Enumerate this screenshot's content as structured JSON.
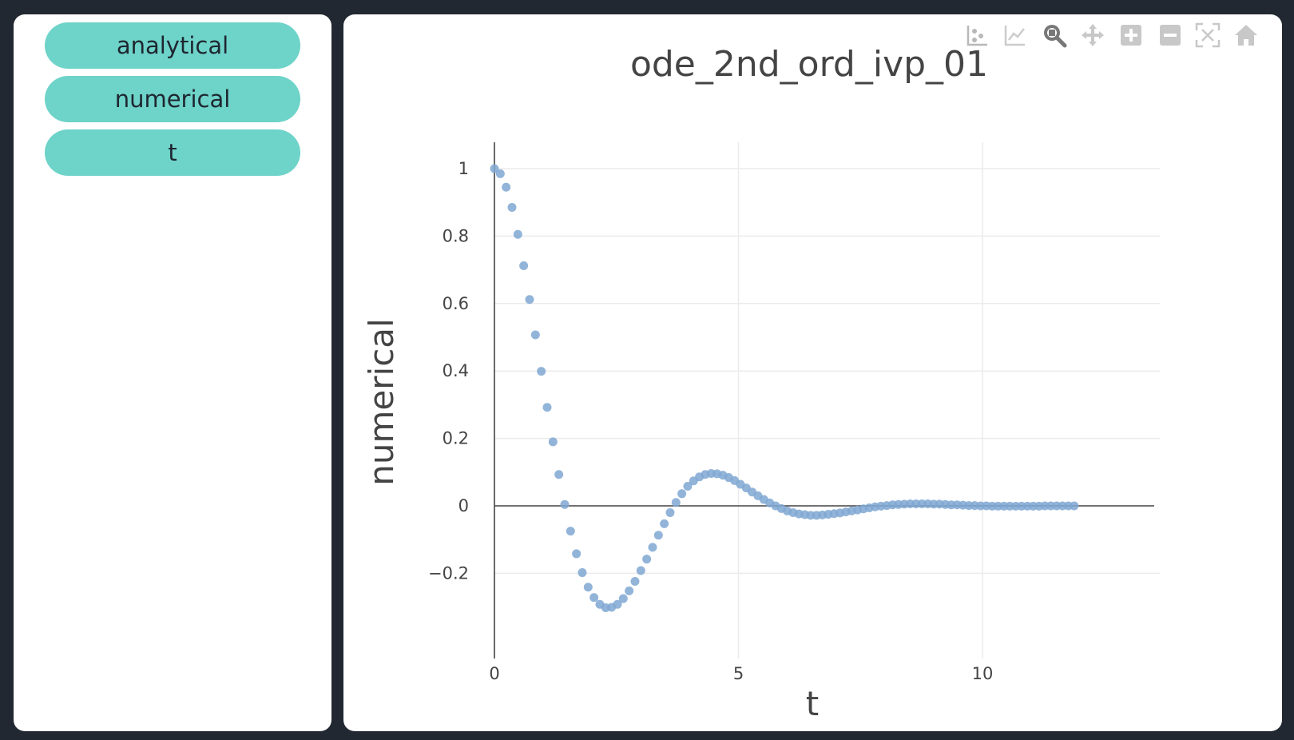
{
  "sidebar": {
    "buttons": [
      {
        "label": "analytical"
      },
      {
        "label": "numerical"
      },
      {
        "label": "t"
      }
    ]
  },
  "modebar": {
    "icons": [
      "compare-data-icon",
      "spike-lines-icon",
      "zoom-icon",
      "pan-icon",
      "zoom-in-icon",
      "zoom-out-icon",
      "autoscale-icon",
      "reset-axes-icon"
    ]
  },
  "chart_data": {
    "type": "scatter",
    "title": "ode_2nd_ord_ivp_01",
    "xlabel": "t",
    "ylabel": "numerical",
    "xlim": [
      -0.7,
      12.8
    ],
    "ylim": [
      -0.39,
      1.09
    ],
    "xticks": [
      0,
      5,
      10
    ],
    "xtick_labels": [
      "0",
      "5",
      "10"
    ],
    "yticks": [
      -0.2,
      0,
      0.2,
      0.4,
      0.6,
      0.8,
      1
    ],
    "ytick_labels": [
      "−0.2",
      "0",
      "0.2",
      "0.4",
      "0.6",
      "0.8",
      "1"
    ],
    "grid": true,
    "marker_color": "#7fa7d2",
    "series": [
      {
        "x": [
          0.0,
          0.12,
          0.24,
          0.36,
          0.48,
          0.6,
          0.72,
          0.84,
          0.96,
          1.08,
          1.2,
          1.32,
          1.44,
          1.56,
          1.68,
          1.8,
          1.92,
          2.04,
          2.16,
          2.28,
          2.4,
          2.52,
          2.64,
          2.76,
          2.88,
          3.0,
          3.12,
          3.24,
          3.36,
          3.48,
          3.6,
          3.72,
          3.84,
          3.96,
          4.08,
          4.2,
          4.32,
          4.44,
          4.56,
          4.68,
          4.8,
          4.92,
          5.04,
          5.16,
          5.28,
          5.4,
          5.52,
          5.64,
          5.76,
          5.88,
          6.0,
          6.12,
          6.24,
          6.36,
          6.48,
          6.6,
          6.72,
          6.84,
          6.96,
          7.08,
          7.2,
          7.32,
          7.44,
          7.56,
          7.68,
          7.8,
          7.92,
          8.04,
          8.16,
          8.28,
          8.4,
          8.52,
          8.64,
          8.76,
          8.88,
          9.0,
          9.12,
          9.24,
          9.36,
          9.48,
          9.6,
          9.72,
          9.84,
          9.96,
          10.08,
          10.2,
          10.32,
          10.44,
          10.56,
          10.68,
          10.8,
          10.92,
          11.04,
          11.16,
          11.28,
          11.4,
          11.52,
          11.64,
          11.76,
          11.88
        ],
        "y": [
          1.0,
          0.985,
          0.945,
          0.885,
          0.805,
          0.712,
          0.612,
          0.507,
          0.399,
          0.292,
          0.19,
          0.093,
          0.004,
          -0.075,
          -0.142,
          -0.198,
          -0.241,
          -0.272,
          -0.292,
          -0.302,
          -0.301,
          -0.292,
          -0.275,
          -0.252,
          -0.224,
          -0.192,
          -0.158,
          -0.123,
          -0.087,
          -0.053,
          -0.02,
          0.01,
          0.036,
          0.058,
          0.074,
          0.086,
          0.093,
          0.096,
          0.095,
          0.091,
          0.084,
          0.075,
          0.064,
          0.053,
          0.041,
          0.03,
          0.019,
          0.009,
          0.0,
          -0.008,
          -0.015,
          -0.02,
          -0.024,
          -0.026,
          -0.028,
          -0.028,
          -0.027,
          -0.025,
          -0.023,
          -0.021,
          -0.018,
          -0.015,
          -0.012,
          -0.009,
          -0.006,
          -0.003,
          -0.001,
          0.001,
          0.003,
          0.004,
          0.005,
          0.006,
          0.006,
          0.006,
          0.006,
          0.005,
          0.005,
          0.004,
          0.003,
          0.003,
          0.002,
          0.001,
          0.001,
          0.0,
          -0.0,
          -0.001,
          -0.001,
          -0.001,
          -0.001,
          -0.001,
          -0.001,
          -0.001,
          -0.001,
          -0.001,
          -0.0,
          -0.0,
          -0.0,
          -0.0,
          0.0,
          0.0
        ]
      }
    ]
  }
}
